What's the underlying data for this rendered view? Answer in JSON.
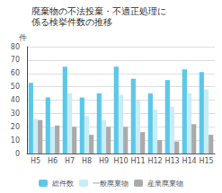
{
  "chart_data": {
    "type": "bar",
    "title": "廃棄物の不法投棄・不適正処理に",
    "subtitle": "係る検挙件数の推移",
    "ylabel": "件",
    "categories": [
      "H5",
      "H6",
      "H7",
      "H8",
      "H9",
      "H10",
      "H11",
      "H12",
      "H13",
      "H14",
      "H15"
    ],
    "series": [
      {
        "name": "総件数",
        "color": "#5bc8e8",
        "values": [
          53,
          42,
          65,
          42,
          45,
          65,
          56,
          45,
          55,
          63,
          61
        ]
      },
      {
        "name": "一般廃棄物",
        "color": "#c8ecf8",
        "values": [
          26,
          20,
          45,
          28,
          25,
          44,
          40,
          33,
          35,
          45,
          48
        ]
      },
      {
        "name": "産業廃棄物",
        "color": "#aaaaaa",
        "values": [
          25,
          21,
          20,
          14,
          20,
          20,
          16,
          10,
          9,
          22,
          14
        ]
      }
    ],
    "ylim": [
      0,
      80
    ],
    "yticks": [
      0,
      10,
      20,
      30,
      40,
      50,
      60,
      70,
      80
    ],
    "grid": true,
    "legend": "bottom"
  }
}
